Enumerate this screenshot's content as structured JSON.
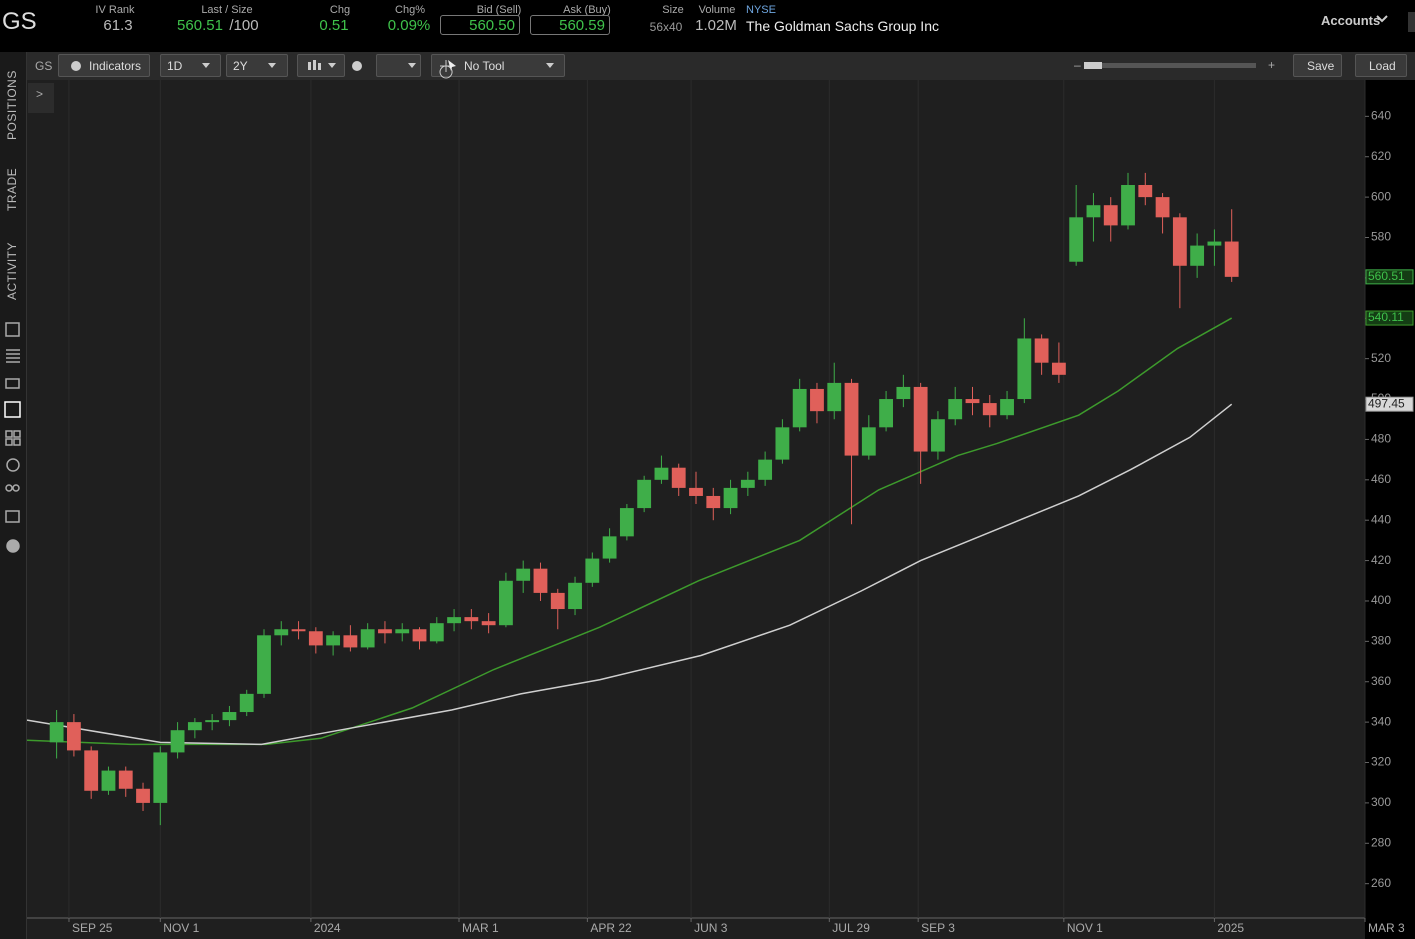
{
  "header": {
    "symbol": "GS",
    "fields": [
      {
        "label": "IV Rank",
        "value": "61.3"
      },
      {
        "label": "Last / Size",
        "value": "560.51",
        "extra": "/100"
      },
      {
        "label": "Chg",
        "value": "0.51"
      },
      {
        "label": "Chg%",
        "value": "0.09%"
      },
      {
        "label": "Bid (Sell)",
        "value": "560.50"
      },
      {
        "label": "Ask (Buy)",
        "value": "560.59"
      },
      {
        "label": "Size",
        "value": "56x40"
      },
      {
        "label": "Volume",
        "value": "1.02M"
      }
    ],
    "exchange": "NYSE",
    "company": "The Goldman Sachs Group Inc",
    "accounts": "Accounts"
  },
  "sidebar": {
    "tabs": [
      "POSITIONS",
      "TRADE",
      "ACTIVITY"
    ]
  },
  "toolbar": {
    "symbol": "GS",
    "indicators": "Indicators",
    "interval": "1D",
    "range": "2Y",
    "tool": "No Tool",
    "save": "Save",
    "load": "Load",
    "expand": ">"
  },
  "chart_data": {
    "type": "candlestick",
    "x": [
      -5,
      2,
      9,
      16,
      23,
      30,
      37,
      44,
      51,
      58,
      65,
      72,
      79,
      86,
      93,
      100,
      107,
      114,
      121,
      128,
      135,
      142,
      149,
      156,
      163,
      170,
      177,
      184,
      191,
      198,
      205,
      212,
      219,
      226,
      233,
      240,
      247,
      254,
      261,
      268,
      275,
      282,
      289,
      296,
      303,
      310,
      317,
      324,
      331,
      338,
      345,
      352,
      359,
      366,
      373,
      380,
      387,
      394,
      401,
      408,
      415,
      422,
      429,
      436,
      443,
      450,
      457,
      464,
      471
    ],
    "open": [
      330,
      340,
      326,
      306,
      316,
      307,
      300,
      325,
      336,
      340,
      341,
      345,
      354,
      383,
      386,
      385,
      378,
      383,
      377,
      386,
      384,
      386,
      380,
      389,
      392,
      390,
      388,
      410,
      416,
      404,
      396,
      409,
      421,
      432,
      446,
      460,
      466,
      456,
      452,
      446,
      456,
      460,
      470,
      486,
      505,
      494,
      508,
      472,
      486,
      500,
      506,
      474,
      490,
      500,
      498,
      492,
      500,
      530,
      518,
      568,
      590,
      596,
      586,
      606,
      600,
      590,
      566,
      576,
      578
    ],
    "high": [
      346,
      344,
      328,
      318,
      318,
      310,
      328,
      340,
      342,
      344,
      348,
      356,
      386,
      390,
      390,
      387,
      385,
      388,
      389,
      390,
      389,
      387,
      392,
      396,
      396,
      394,
      414,
      420,
      419,
      406,
      412,
      424,
      436,
      448,
      462,
      472,
      468,
      464,
      456,
      460,
      464,
      474,
      490,
      510,
      508,
      518,
      510,
      492,
      504,
      512,
      508,
      494,
      506,
      506,
      502,
      504,
      540,
      532,
      528,
      606,
      602,
      600,
      612,
      612,
      602,
      592,
      582,
      584,
      594
    ],
    "low": [
      322,
      323,
      302,
      304,
      303,
      296,
      289,
      322,
      332,
      336,
      338,
      343,
      352,
      378,
      381,
      374,
      373,
      375,
      376,
      379,
      380,
      376,
      379,
      385,
      386,
      384,
      387,
      404,
      400,
      386,
      393,
      407,
      419,
      430,
      444,
      458,
      452,
      448,
      440,
      443,
      452,
      457,
      468,
      484,
      488,
      490,
      438,
      470,
      484,
      496,
      458,
      470,
      487,
      492,
      486,
      490,
      498,
      512,
      508,
      566,
      578,
      578,
      584,
      596,
      582,
      545,
      560,
      566,
      558
    ],
    "close": [
      340,
      326,
      306,
      316,
      307,
      300,
      325,
      336,
      340,
      341,
      345,
      354,
      383,
      386,
      385,
      378,
      383,
      377,
      386,
      384,
      386,
      380,
      389,
      392,
      390,
      388,
      410,
      416,
      404,
      396,
      409,
      421,
      432,
      446,
      460,
      466,
      456,
      452,
      446,
      456,
      460,
      470,
      486,
      505,
      494,
      508,
      472,
      486,
      500,
      506,
      474,
      490,
      500,
      498,
      492,
      500,
      530,
      518,
      512,
      590,
      596,
      586,
      606,
      600,
      590,
      566,
      576,
      578,
      560.51
    ],
    "up_color": "#3fae49",
    "down_color": "#e0605a",
    "series": [
      {
        "color": "#3d9a2c",
        "x": [
          -17,
          25,
          80,
          102,
          139,
          172,
          215,
          255,
          296,
          328,
          360,
          376,
          409,
          425,
          449,
          471
        ],
        "values": [
          331,
          329,
          329,
          332,
          347,
          366,
          387,
          410,
          430,
          455,
          472,
          478,
          492,
          504,
          525,
          540.11
        ]
      },
      {
        "color": "#cfcfcf",
        "x": [
          -17,
          37,
          78,
          114,
          155,
          183,
          215,
          256,
          292,
          321,
          345,
          377,
          409,
          430,
          454,
          471
        ],
        "values": [
          341,
          330,
          329,
          337,
          346,
          354,
          361,
          373,
          388,
          405,
          420,
          436,
          452,
          465,
          481,
          497.45
        ]
      }
    ],
    "xlim": [
      -17,
      525
    ],
    "ylim": [
      243,
      658
    ],
    "xticks": [
      {
        "value": 0,
        "label": "SEP 25"
      },
      {
        "value": 37,
        "label": "NOV 1"
      },
      {
        "value": 98,
        "label": "2024"
      },
      {
        "value": 158,
        "label": "MAR 1"
      },
      {
        "value": 210,
        "label": "APR 22"
      },
      {
        "value": 252,
        "label": "JUN 3"
      },
      {
        "value": 308,
        "label": "JUL 29"
      },
      {
        "value": 344,
        "label": "SEP 3"
      },
      {
        "value": 403,
        "label": "NOV 1"
      },
      {
        "value": 464,
        "label": "2025"
      },
      {
        "value": 525,
        "label": "MAR 3"
      }
    ],
    "yticks": [
      260,
      280,
      300,
      320,
      340,
      360,
      380,
      400,
      420,
      440,
      460,
      480,
      500,
      520,
      540,
      560,
      580,
      600,
      620,
      640
    ],
    "grid": "x"
  }
}
